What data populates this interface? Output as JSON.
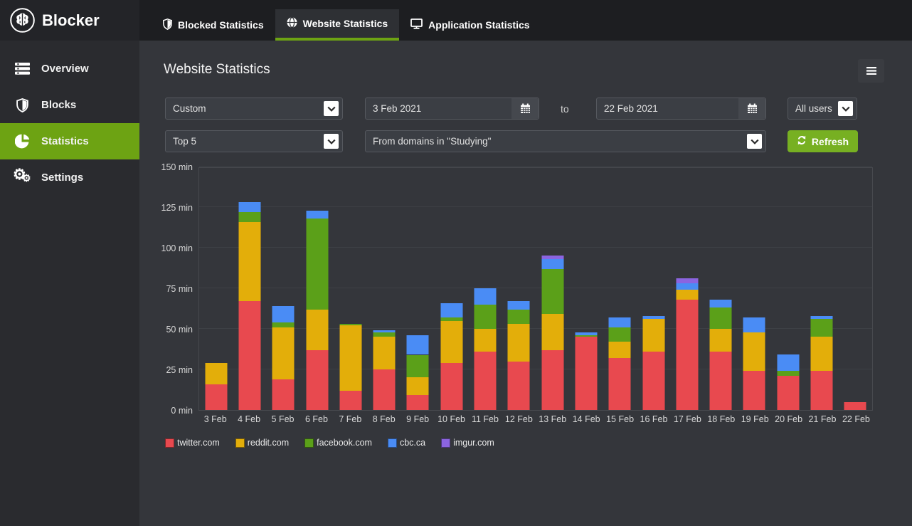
{
  "app": {
    "name": "Blocker"
  },
  "colors": {
    "accent_green": "#6da313",
    "button_green": "#77b022",
    "series_red": "#e8494f",
    "series_yellow": "#e3ae0a",
    "series_green": "#5ba019",
    "series_blue": "#4a8cf5",
    "series_purple": "#8b64e0"
  },
  "sidebar": {
    "items": [
      {
        "label": "Overview",
        "icon": "list-icon",
        "active": false
      },
      {
        "label": "Blocks",
        "icon": "shield-icon",
        "active": false
      },
      {
        "label": "Statistics",
        "icon": "pie-icon",
        "active": true
      },
      {
        "label": "Settings",
        "icon": "gears-icon",
        "active": false
      }
    ]
  },
  "tabs": [
    {
      "label": "Blocked Statistics",
      "icon": "shield-icon",
      "active": false
    },
    {
      "label": "Website Statistics",
      "icon": "globe-icon",
      "active": true
    },
    {
      "label": "Application Statistics",
      "icon": "monitor-icon",
      "active": false
    }
  ],
  "page": {
    "title": "Website Statistics"
  },
  "filters": {
    "range_select": "Custom",
    "date_from": "3 Feb 2021",
    "to_label": "to",
    "date_to": "22 Feb 2021",
    "users_select": "All users",
    "top_select": "Top 5",
    "domains_select": "From domains in \"Studying\"",
    "refresh_label": "Refresh"
  },
  "chart_data": {
    "type": "bar",
    "stacked": true,
    "categories": [
      "3 Feb",
      "4 Feb",
      "5 Feb",
      "6 Feb",
      "7 Feb",
      "8 Feb",
      "9 Feb",
      "10 Feb",
      "11 Feb",
      "12 Feb",
      "13 Feb",
      "14 Feb",
      "15 Feb",
      "16 Feb",
      "17 Feb",
      "18 Feb",
      "19 Feb",
      "20 Feb",
      "21 Feb",
      "22 Feb"
    ],
    "series": [
      {
        "name": "twitter.com",
        "color": "#e8494f",
        "values": [
          16,
          67,
          19,
          37,
          12,
          25,
          9,
          29,
          36,
          30,
          37,
          45,
          32,
          36,
          68,
          36,
          24,
          21,
          24,
          5
        ]
      },
      {
        "name": "reddit.com",
        "color": "#e3ae0a",
        "values": [
          13,
          49,
          32,
          25,
          40,
          20,
          11,
          26,
          14,
          23,
          22,
          0,
          10,
          20,
          6,
          14,
          24,
          0,
          21,
          0
        ]
      },
      {
        "name": "facebook.com",
        "color": "#5ba019",
        "values": [
          0,
          6,
          3,
          56,
          1,
          3,
          14,
          2,
          15,
          9,
          28,
          1,
          9,
          0,
          0,
          13,
          0,
          3,
          11,
          0
        ]
      },
      {
        "name": "cbc.ca",
        "color": "#4a8cf5",
        "values": [
          0,
          6,
          10,
          5,
          0,
          1,
          12,
          9,
          10,
          5,
          6,
          2,
          6,
          2,
          4,
          5,
          9,
          10,
          2,
          0
        ]
      },
      {
        "name": "imgur.com",
        "color": "#8b64e0",
        "values": [
          0,
          0,
          0,
          0,
          0,
          0,
          0,
          0,
          0,
          0,
          2,
          0,
          0,
          0,
          3,
          0,
          0,
          0,
          0,
          0
        ]
      }
    ],
    "yticks": [
      0,
      25,
      50,
      75,
      100,
      125,
      150
    ],
    "tick_suffix": " min",
    "ylim": [
      0,
      150
    ],
    "xlabel": "",
    "ylabel": "",
    "title": "",
    "grid": true,
    "legend_position": "bottom"
  }
}
